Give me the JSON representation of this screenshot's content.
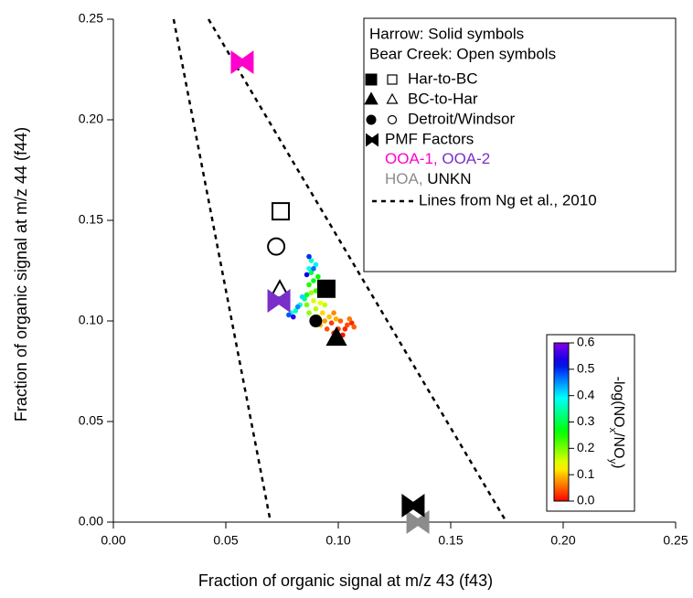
{
  "chart_data": {
    "type": "scatter",
    "xlabel": "Fraction of organic signal at m/z 43 (f43)",
    "ylabel": "Fraction of organic signal at m/z 44 (f44)",
    "xlim": [
      0,
      0.25
    ],
    "ylim": [
      0,
      0.25
    ],
    "xticks": [
      {
        "value": 0,
        "label": "0.00"
      },
      0.05,
      {
        "value": 0.1,
        "label": "0.10"
      },
      0.15,
      {
        "value": 0.2,
        "label": "0.20"
      },
      0.25
    ],
    "yticks": [
      {
        "value": 0,
        "label": "0.00"
      },
      0.05,
      {
        "value": 0.1,
        "label": "0.10"
      },
      0.15,
      {
        "value": 0.2,
        "label": "0.20"
      },
      0.25
    ],
    "legend_header": [
      "Harrow: Solid symbols",
      "Bear Creek: Open symbols"
    ],
    "legend_separator": ", ",
    "series": [
      {
        "name": "Har-to-BC",
        "marker": "square",
        "color": "#000000",
        "x": [
          0.0947,
          0.0744
        ],
        "values": [
          0.116,
          0.1545
        ],
        "filled": [
          true,
          false
        ]
      },
      {
        "name": "BC-to-Har",
        "marker": "triangle",
        "color": "#000000",
        "x": [
          0.0992,
          0.074
        ],
        "values": [
          0.0914,
          0.115
        ],
        "filled": [
          true,
          false
        ]
      },
      {
        "name": "Detroit/Windsor",
        "marker": "circle",
        "color": "#000000",
        "x": [
          0.09,
          0.0724
        ],
        "values": [
          0.1,
          0.137
        ],
        "filled": [
          true,
          false
        ]
      }
    ],
    "pmf": {
      "name": "PMF Factors",
      "marker": "bowtie",
      "color": "#000000",
      "point_names": [
        "OOA-1",
        "OOA-2",
        "HOA",
        "UNKN"
      ],
      "point_colors": [
        "#ff00cc",
        "#7a2fc8",
        "#8c8c8c",
        "#000000"
      ],
      "x": [
        0.0573,
        0.0736,
        0.1354,
        0.1333
      ],
      "values": [
        0.2286,
        0.11,
        0,
        0.0082
      ]
    },
    "reference_lines": {
      "name": "Lines from Ng et al., 2010",
      "lines": [
        {
          "x": [
            0.0268,
            0.0699
          ],
          "values": [
            0.25,
            0
          ]
        },
        {
          "x": [
            0.0423,
            0.1748
          ],
          "values": [
            0.25,
            0
          ]
        }
      ]
    },
    "colored_points": {
      "x": [
        0.098,
        0.1,
        0.102,
        0.104,
        0.106,
        0.101,
        0.097,
        0.099,
        0.103,
        0.095,
        0.1,
        0.094,
        0.096,
        0.092,
        0.098,
        0.105,
        0.093,
        0.107,
        0.091,
        0.099,
        0.089,
        0.09,
        0.092,
        0.088,
        0.094,
        0.087,
        0.086,
        0.087,
        0.089,
        0.088,
        0.09,
        0.086,
        0.091,
        0.085,
        0.087,
        0.09,
        0.083,
        0.081,
        0.079,
        0.084,
        0.088,
        0.087,
        0.089,
        0.078,
        0.082,
        0.086,
        0.08
      ],
      "values": [
        0.094,
        0.096,
        0.093,
        0.098,
        0.099,
        0.1,
        0.099,
        0.092,
        0.096,
        0.096,
        0.09,
        0.1,
        0.102,
        0.098,
        0.104,
        0.101,
        0.104,
        0.097,
        0.102,
        0.101,
        0.11,
        0.106,
        0.109,
        0.114,
        0.108,
        0.104,
        0.108,
        0.118,
        0.12,
        0.124,
        0.115,
        0.113,
        0.122,
        0.111,
        0.126,
        0.128,
        0.108,
        0.105,
        0.104,
        0.112,
        0.13,
        0.132,
        0.126,
        0.103,
        0.107,
        0.123,
        0.102
      ],
      "z": [
        0.02,
        0.03,
        0.01,
        0.04,
        0.02,
        0.05,
        0.03,
        0,
        0.02,
        0.04,
        0.03,
        0.08,
        0.1,
        0.09,
        0.07,
        0.06,
        0.11,
        0.05,
        0.12,
        0.09,
        0.15,
        0.17,
        0.14,
        0.18,
        0.16,
        0.19,
        0.2,
        0.25,
        0.27,
        0.3,
        0.23,
        0.28,
        0.26,
        0.32,
        0.38,
        0.4,
        0.37,
        0.36,
        0.39,
        0.41,
        0.36,
        0.5,
        0.47,
        0.48,
        0.45,
        0.52,
        0.55
      ]
    },
    "colorbar": {
      "zlim": [
        0,
        0.6
      ],
      "ticks": [
        {
          "value": 0,
          "label": "0.0"
        },
        0.1,
        0.2,
        0.3,
        0.4,
        0.5,
        0.6
      ],
      "label_parts": [
        "-log(NO",
        "x",
        "/NO",
        "y",
        ")"
      ]
    }
  }
}
